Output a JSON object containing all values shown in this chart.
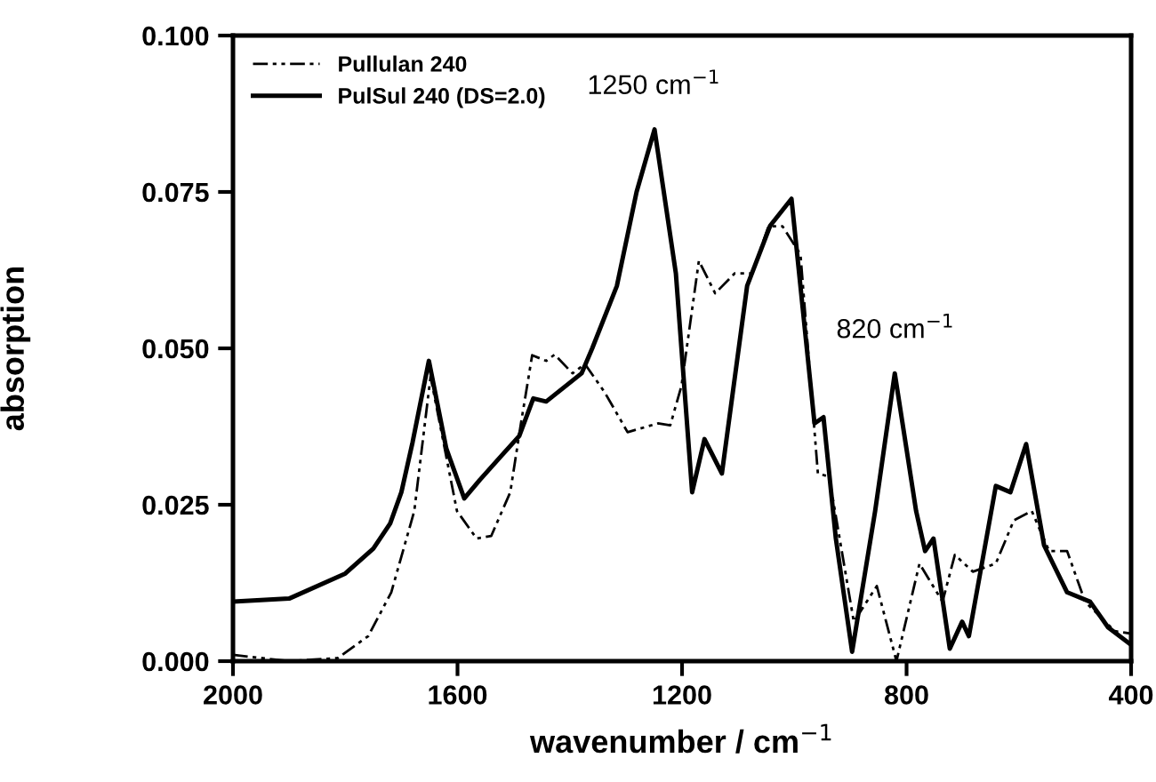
{
  "chart_data": {
    "type": "line",
    "xlabel": "wavenumber / cm$^{−1}$",
    "ylabel": "absorption",
    "xlim": [
      2000,
      400
    ],
    "ylim": [
      0,
      0.1
    ],
    "xticks": [
      2000,
      1600,
      1200,
      800,
      400
    ],
    "yticks": [
      {
        "value": 0,
        "label": "0.000"
      },
      {
        "value": 0.025,
        "label": "0.025"
      },
      {
        "value": 0.05,
        "label": "0.050"
      },
      {
        "value": 0.075,
        "label": "0.075"
      },
      {
        "value": 0.1,
        "label": "0.100"
      }
    ],
    "grid": false,
    "legend": "top left",
    "marker": "none",
    "annotations": [
      {
        "text": "1250 cm$^{−1}$",
        "x": 1250,
        "y": 0.085
      },
      {
        "text": "820 cm$^{−1}$",
        "x": 820,
        "y": 0.046
      }
    ],
    "series": [
      {
        "name": "Pullulan 240",
        "color": "#000000",
        "line_style": "dashed",
        "x": [
          2000,
          1900,
          1813,
          1759,
          1718,
          1677,
          1648,
          1601,
          1566,
          1540,
          1506,
          1487,
          1467,
          1442,
          1427,
          1395,
          1373,
          1338,
          1297,
          1243,
          1221,
          1201,
          1170,
          1141,
          1106,
          1075,
          1046,
          1021,
          989,
          958,
          938,
          894,
          853,
          818,
          777,
          736,
          714,
          682,
          641,
          609,
          577,
          546,
          514,
          482,
          429,
          400
        ],
        "values": [
          0.001,
          0.0,
          0.0005,
          0.004,
          0.011,
          0.024,
          0.0455,
          0.024,
          0.0196,
          0.02,
          0.027,
          0.038,
          0.0489,
          0.048,
          0.049,
          0.046,
          0.0475,
          0.043,
          0.0366,
          0.038,
          0.0377,
          0.044,
          0.064,
          0.0588,
          0.062,
          0.062,
          0.0695,
          0.0695,
          0.065,
          0.03,
          0.0295,
          0.0063,
          0.012,
          0.0,
          0.0156,
          0.0095,
          0.017,
          0.0143,
          0.0156,
          0.0225,
          0.024,
          0.0176,
          0.0176,
          0.0095,
          0.0048,
          0.0044
        ]
      },
      {
        "name": "PulSul 240 (DS=2.0)",
        "color": "#000000",
        "line_style": "solid",
        "x": [
          2000,
          1900,
          1800,
          1750,
          1720,
          1700,
          1680,
          1651,
          1620,
          1588,
          1560,
          1520,
          1490,
          1465,
          1442,
          1379,
          1360,
          1316,
          1281,
          1249,
          1211,
          1182,
          1160,
          1129,
          1084,
          1043,
          1005,
          964,
          948,
          926,
          897,
          856,
          821,
          783,
          767,
          752,
          723,
          701,
          689,
          641,
          615,
          587,
          555,
          514,
          473,
          441,
          400
        ],
        "values": [
          0.0095,
          0.01,
          0.014,
          0.018,
          0.022,
          0.027,
          0.035,
          0.048,
          0.034,
          0.026,
          0.029,
          0.033,
          0.036,
          0.042,
          0.0415,
          0.046,
          0.05,
          0.06,
          0.075,
          0.085,
          0.062,
          0.027,
          0.0355,
          0.03,
          0.06,
          0.0696,
          0.0739,
          0.038,
          0.039,
          0.0196,
          0.0015,
          0.024,
          0.046,
          0.024,
          0.0176,
          0.0196,
          0.002,
          0.0063,
          0.004,
          0.028,
          0.027,
          0.0347,
          0.0185,
          0.011,
          0.0095,
          0.0054,
          0.0026
        ]
      }
    ]
  }
}
